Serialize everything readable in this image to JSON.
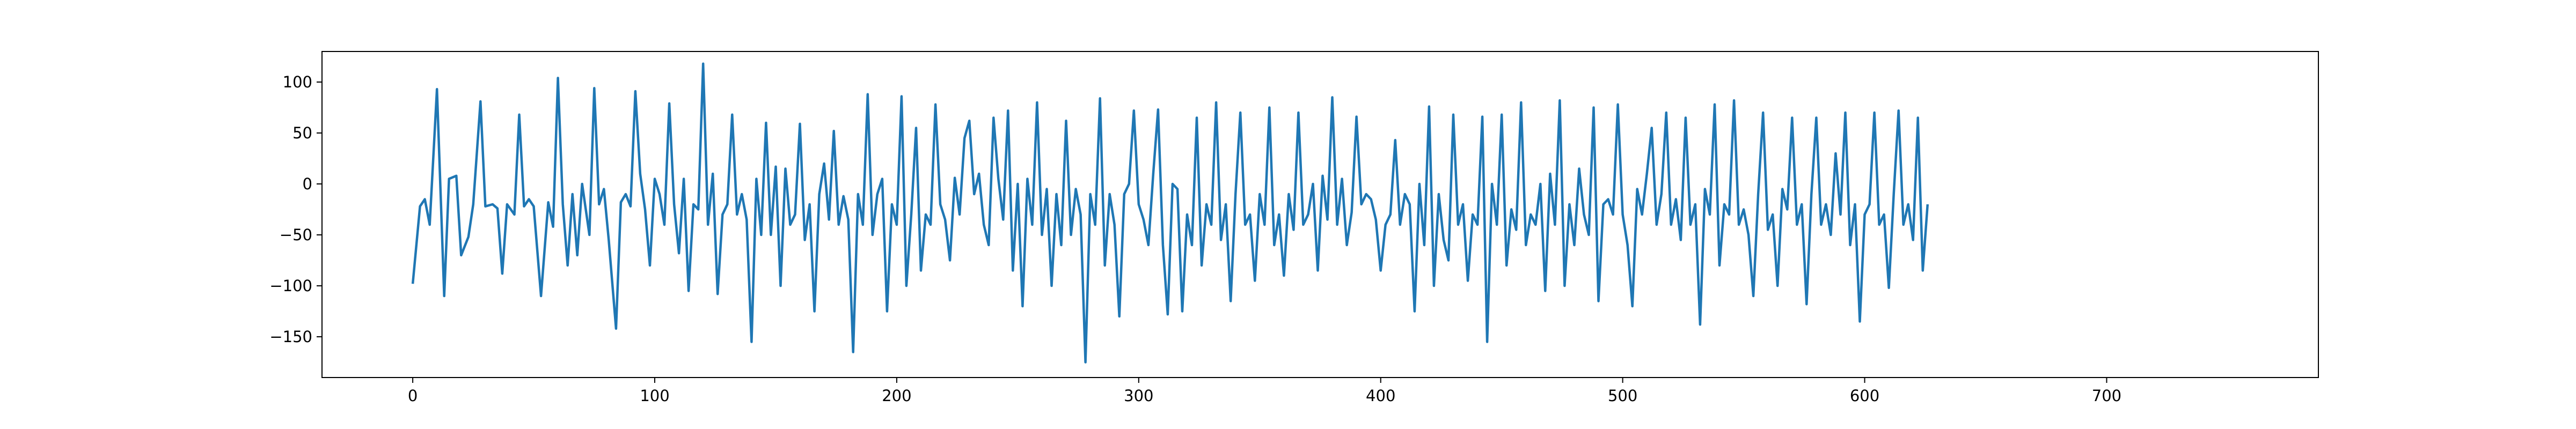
{
  "chart_data": {
    "type": "line",
    "title": "",
    "xlabel": "",
    "ylabel": "",
    "xlim": [
      -37.5,
      787.5
    ],
    "ylim": [
      -190,
      130
    ],
    "xticks": [
      0,
      100,
      200,
      300,
      400,
      500,
      600,
      700
    ],
    "yticks": [
      100,
      50,
      0,
      -50,
      -100,
      -150
    ],
    "grid": false,
    "legend": "none",
    "series": [
      {
        "color": "#1f77b4",
        "points": [
          [
            0,
            -98
          ],
          [
            3,
            -22
          ],
          [
            5,
            -15
          ],
          [
            7,
            -40
          ],
          [
            10,
            93
          ],
          [
            13,
            -110
          ],
          [
            15,
            5
          ],
          [
            18,
            8
          ],
          [
            20,
            -70
          ],
          [
            23,
            -52
          ],
          [
            25,
            -20
          ],
          [
            28,
            81
          ],
          [
            30,
            -22
          ],
          [
            33,
            -20
          ],
          [
            35,
            -24
          ],
          [
            37,
            -88
          ],
          [
            39,
            -20
          ],
          [
            42,
            -30
          ],
          [
            44,
            68
          ],
          [
            46,
            -22
          ],
          [
            48,
            -15
          ],
          [
            50,
            -22
          ],
          [
            53,
            -110
          ],
          [
            56,
            -18
          ],
          [
            58,
            -42
          ],
          [
            60,
            104
          ],
          [
            62,
            -20
          ],
          [
            64,
            -80
          ],
          [
            66,
            -10
          ],
          [
            68,
            -70
          ],
          [
            70,
            0
          ],
          [
            73,
            -50
          ],
          [
            75,
            94
          ],
          [
            77,
            -20
          ],
          [
            79,
            -5
          ],
          [
            81,
            -55
          ],
          [
            84,
            -142
          ],
          [
            86,
            -18
          ],
          [
            88,
            -10
          ],
          [
            90,
            -22
          ],
          [
            92,
            91
          ],
          [
            94,
            10
          ],
          [
            96,
            -25
          ],
          [
            98,
            -80
          ],
          [
            100,
            5
          ],
          [
            102,
            -10
          ],
          [
            104,
            -40
          ],
          [
            106,
            79
          ],
          [
            108,
            -20
          ],
          [
            110,
            -68
          ],
          [
            112,
            5
          ],
          [
            114,
            -105
          ],
          [
            116,
            -20
          ],
          [
            118,
            -25
          ],
          [
            120,
            118
          ],
          [
            122,
            -40
          ],
          [
            124,
            10
          ],
          [
            126,
            -108
          ],
          [
            128,
            -30
          ],
          [
            130,
            -20
          ],
          [
            132,
            68
          ],
          [
            134,
            -30
          ],
          [
            136,
            -10
          ],
          [
            138,
            -35
          ],
          [
            140,
            -155
          ],
          [
            142,
            5
          ],
          [
            144,
            -50
          ],
          [
            146,
            60
          ],
          [
            148,
            -50
          ],
          [
            150,
            17
          ],
          [
            152,
            -100
          ],
          [
            154,
            15
          ],
          [
            156,
            -40
          ],
          [
            158,
            -30
          ],
          [
            160,
            59
          ],
          [
            162,
            -55
          ],
          [
            164,
            -20
          ],
          [
            166,
            -125
          ],
          [
            168,
            -10
          ],
          [
            170,
            20
          ],
          [
            172,
            -35
          ],
          [
            174,
            52
          ],
          [
            176,
            -40
          ],
          [
            178,
            -12
          ],
          [
            180,
            -35
          ],
          [
            182,
            -165
          ],
          [
            184,
            -10
          ],
          [
            186,
            -40
          ],
          [
            188,
            88
          ],
          [
            190,
            -50
          ],
          [
            192,
            -10
          ],
          [
            194,
            5
          ],
          [
            196,
            -125
          ],
          [
            198,
            -20
          ],
          [
            200,
            -40
          ],
          [
            202,
            86
          ],
          [
            204,
            -100
          ],
          [
            206,
            -30
          ],
          [
            208,
            55
          ],
          [
            210,
            -85
          ],
          [
            212,
            -30
          ],
          [
            214,
            -40
          ],
          [
            216,
            78
          ],
          [
            218,
            -20
          ],
          [
            220,
            -35
          ],
          [
            222,
            -75
          ],
          [
            224,
            6
          ],
          [
            226,
            -30
          ],
          [
            228,
            45
          ],
          [
            230,
            62
          ],
          [
            232,
            -10
          ],
          [
            234,
            10
          ],
          [
            236,
            -40
          ],
          [
            238,
            -60
          ],
          [
            240,
            65
          ],
          [
            242,
            5
          ],
          [
            244,
            -35
          ],
          [
            246,
            72
          ],
          [
            248,
            -85
          ],
          [
            250,
            0
          ],
          [
            252,
            -120
          ],
          [
            254,
            5
          ],
          [
            256,
            -40
          ],
          [
            258,
            80
          ],
          [
            260,
            -50
          ],
          [
            262,
            -5
          ],
          [
            264,
            -100
          ],
          [
            266,
            -10
          ],
          [
            268,
            -60
          ],
          [
            270,
            62
          ],
          [
            272,
            -50
          ],
          [
            274,
            -5
          ],
          [
            276,
            -30
          ],
          [
            278,
            -175
          ],
          [
            280,
            -10
          ],
          [
            282,
            -40
          ],
          [
            284,
            84
          ],
          [
            286,
            -80
          ],
          [
            288,
            -10
          ],
          [
            290,
            -40
          ],
          [
            292,
            -130
          ],
          [
            294,
            -10
          ],
          [
            296,
            0
          ],
          [
            298,
            72
          ],
          [
            300,
            -20
          ],
          [
            302,
            -35
          ],
          [
            304,
            -60
          ],
          [
            306,
            10
          ],
          [
            308,
            73
          ],
          [
            310,
            -60
          ],
          [
            312,
            -128
          ],
          [
            314,
            0
          ],
          [
            316,
            -5
          ],
          [
            318,
            -125
          ],
          [
            320,
            -30
          ],
          [
            322,
            -60
          ],
          [
            324,
            65
          ],
          [
            326,
            -80
          ],
          [
            328,
            -20
          ],
          [
            330,
            -40
          ],
          [
            332,
            80
          ],
          [
            334,
            -55
          ],
          [
            336,
            -20
          ],
          [
            338,
            -115
          ],
          [
            340,
            -10
          ],
          [
            342,
            70
          ],
          [
            344,
            -40
          ],
          [
            346,
            -30
          ],
          [
            348,
            -95
          ],
          [
            350,
            -10
          ],
          [
            352,
            -40
          ],
          [
            354,
            75
          ],
          [
            356,
            -60
          ],
          [
            358,
            -30
          ],
          [
            360,
            -90
          ],
          [
            362,
            -10
          ],
          [
            364,
            -45
          ],
          [
            366,
            70
          ],
          [
            368,
            -40
          ],
          [
            370,
            -30
          ],
          [
            372,
            0
          ],
          [
            374,
            -85
          ],
          [
            376,
            8
          ],
          [
            378,
            -35
          ],
          [
            380,
            85
          ],
          [
            382,
            -40
          ],
          [
            384,
            5
          ],
          [
            386,
            -60
          ],
          [
            388,
            -28
          ],
          [
            390,
            66
          ],
          [
            392,
            -20
          ],
          [
            394,
            -10
          ],
          [
            396,
            -15
          ],
          [
            398,
            -35
          ],
          [
            400,
            -85
          ],
          [
            402,
            -40
          ],
          [
            404,
            -30
          ],
          [
            406,
            43
          ],
          [
            408,
            -40
          ],
          [
            410,
            -10
          ],
          [
            412,
            -20
          ],
          [
            414,
            -125
          ],
          [
            416,
            0
          ],
          [
            418,
            -60
          ],
          [
            420,
            76
          ],
          [
            422,
            -100
          ],
          [
            424,
            -10
          ],
          [
            426,
            -55
          ],
          [
            428,
            -75
          ],
          [
            430,
            68
          ],
          [
            432,
            -40
          ],
          [
            434,
            -20
          ],
          [
            436,
            -95
          ],
          [
            438,
            -30
          ],
          [
            440,
            -40
          ],
          [
            442,
            66
          ],
          [
            444,
            -155
          ],
          [
            446,
            0
          ],
          [
            448,
            -40
          ],
          [
            450,
            68
          ],
          [
            452,
            -80
          ],
          [
            454,
            -25
          ],
          [
            456,
            -45
          ],
          [
            458,
            80
          ],
          [
            460,
            -60
          ],
          [
            462,
            -30
          ],
          [
            464,
            -40
          ],
          [
            466,
            0
          ],
          [
            468,
            -105
          ],
          [
            470,
            10
          ],
          [
            472,
            -40
          ],
          [
            474,
            82
          ],
          [
            476,
            -100
          ],
          [
            478,
            -20
          ],
          [
            480,
            -60
          ],
          [
            482,
            15
          ],
          [
            484,
            -30
          ],
          [
            486,
            -50
          ],
          [
            488,
            75
          ],
          [
            490,
            -115
          ],
          [
            492,
            -20
          ],
          [
            494,
            -15
          ],
          [
            496,
            -30
          ],
          [
            498,
            78
          ],
          [
            500,
            -30
          ],
          [
            502,
            -60
          ],
          [
            504,
            -120
          ],
          [
            506,
            -5
          ],
          [
            508,
            -30
          ],
          [
            510,
            10
          ],
          [
            512,
            55
          ],
          [
            514,
            -40
          ],
          [
            516,
            -10
          ],
          [
            518,
            70
          ],
          [
            520,
            -40
          ],
          [
            522,
            -15
          ],
          [
            524,
            -55
          ],
          [
            526,
            65
          ],
          [
            528,
            -40
          ],
          [
            530,
            -20
          ],
          [
            532,
            -138
          ],
          [
            534,
            -5
          ],
          [
            536,
            -30
          ],
          [
            538,
            78
          ],
          [
            540,
            -80
          ],
          [
            542,
            -20
          ],
          [
            544,
            -30
          ],
          [
            546,
            82
          ],
          [
            548,
            -40
          ],
          [
            550,
            -25
          ],
          [
            552,
            -50
          ],
          [
            554,
            -110
          ],
          [
            556,
            -10
          ],
          [
            558,
            70
          ],
          [
            560,
            -45
          ],
          [
            562,
            -30
          ],
          [
            564,
            -100
          ],
          [
            566,
            -5
          ],
          [
            568,
            -25
          ],
          [
            570,
            65
          ],
          [
            572,
            -40
          ],
          [
            574,
            -20
          ],
          [
            576,
            -118
          ],
          [
            578,
            -10
          ],
          [
            580,
            65
          ],
          [
            582,
            -40
          ],
          [
            584,
            -20
          ],
          [
            586,
            -50
          ],
          [
            588,
            30
          ],
          [
            590,
            -30
          ],
          [
            592,
            70
          ],
          [
            594,
            -60
          ],
          [
            596,
            -20
          ],
          [
            598,
            -135
          ],
          [
            600,
            -30
          ],
          [
            602,
            -20
          ],
          [
            604,
            70
          ],
          [
            606,
            -40
          ],
          [
            608,
            -30
          ],
          [
            610,
            -102
          ],
          [
            612,
            -10
          ],
          [
            614,
            72
          ],
          [
            616,
            -40
          ],
          [
            618,
            -20
          ],
          [
            620,
            -55
          ],
          [
            622,
            65
          ],
          [
            624,
            -85
          ],
          [
            626,
            -20
          ]
        ]
      }
    ]
  }
}
